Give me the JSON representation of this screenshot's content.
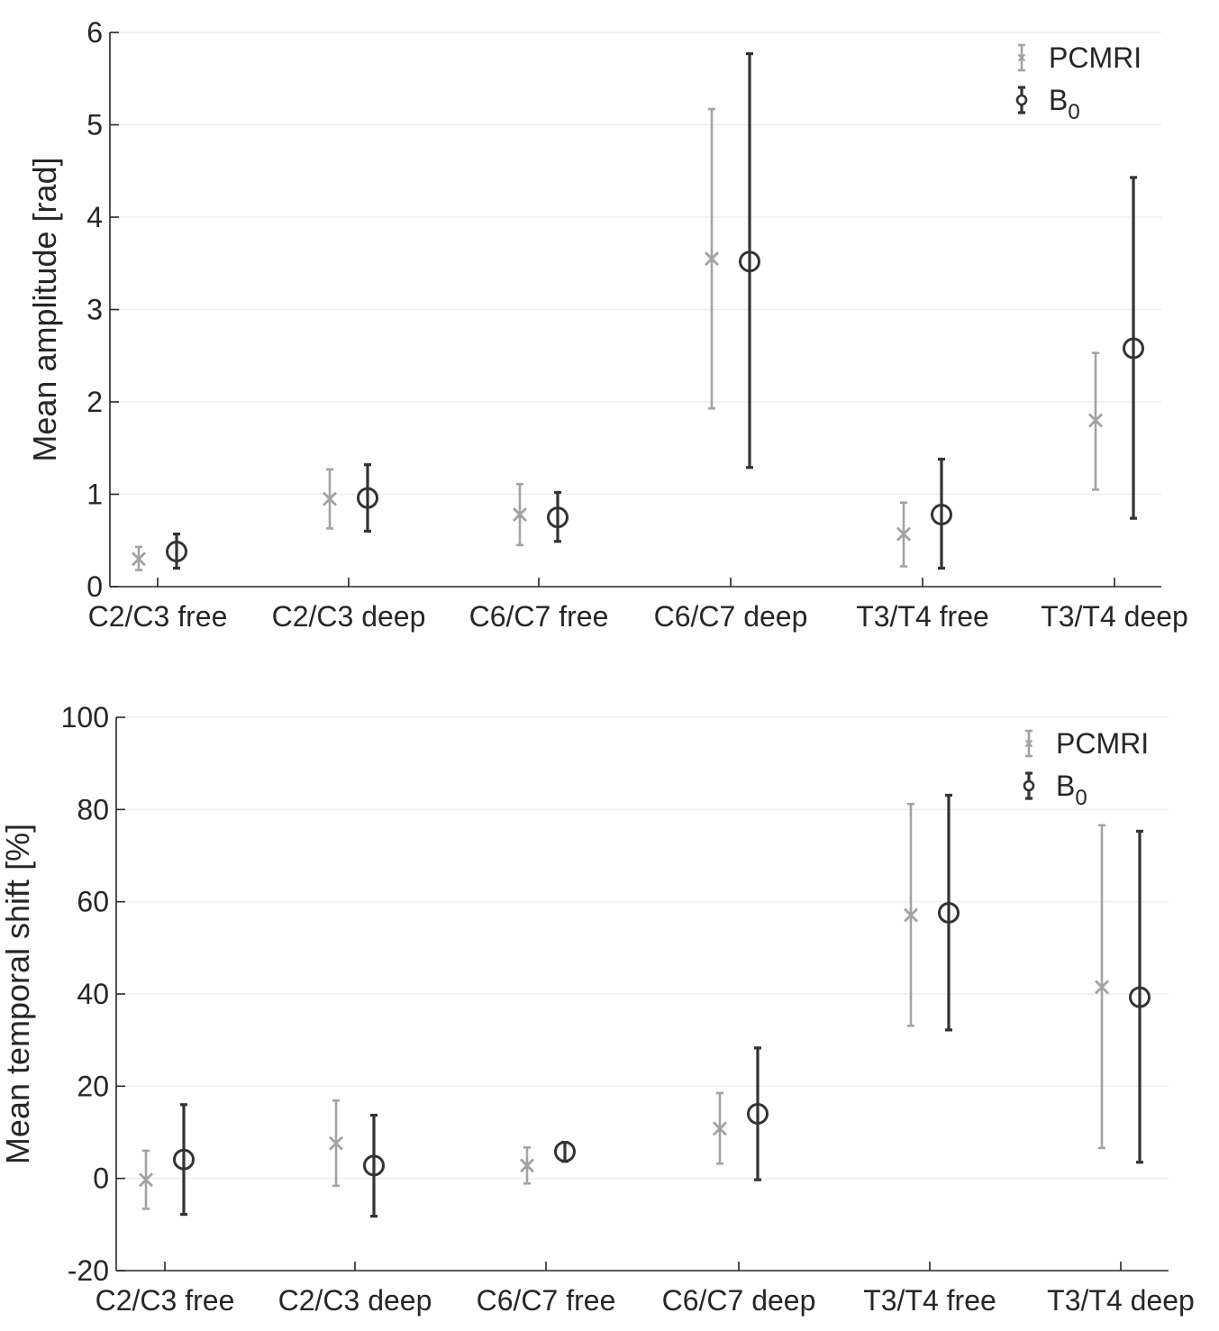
{
  "chart_data": [
    {
      "type": "errorbar",
      "title": "",
      "xlabel": "",
      "ylabel": "Mean amplitude [rad]",
      "ylim": [
        0,
        6
      ],
      "yticks": [
        0,
        1,
        2,
        3,
        4,
        5,
        6
      ],
      "categories": [
        "C2/C3 free",
        "C2/C3 deep",
        "C6/C7 free",
        "C6/C7 deep",
        "T3/T4 free",
        "T3/T4 deep"
      ],
      "legend_position": "top-right",
      "series": [
        {
          "name": "PCMRI",
          "marker": "x",
          "color": "#a3a3a3",
          "values": [
            0.3,
            0.95,
            0.78,
            3.55,
            0.57,
            1.8
          ],
          "lower": [
            0.18,
            0.63,
            0.45,
            1.93,
            0.22,
            1.05
          ],
          "upper": [
            0.43,
            1.27,
            1.11,
            5.17,
            0.91,
            2.53
          ]
        },
        {
          "name": "B",
          "name_sub": "0",
          "marker": "o",
          "color": "#333333",
          "values": [
            0.38,
            0.96,
            0.75,
            3.52,
            0.78,
            2.58
          ],
          "lower": [
            0.2,
            0.6,
            0.49,
            1.29,
            0.2,
            0.74
          ],
          "upper": [
            0.57,
            1.32,
            1.02,
            5.77,
            1.38,
            4.43
          ]
        }
      ]
    },
    {
      "type": "errorbar",
      "title": "",
      "xlabel": "",
      "ylabel": "Mean temporal shift [%]",
      "ylim": [
        -20,
        100
      ],
      "yticks": [
        -20,
        0,
        20,
        40,
        60,
        80,
        100
      ],
      "categories": [
        "C2/C3 free",
        "C2/C3 deep",
        "C6/C7 free",
        "C6/C7 deep",
        "T3/T4 free",
        "T3/T4 deep"
      ],
      "legend_position": "top-right",
      "series": [
        {
          "name": "PCMRI",
          "marker": "x",
          "color": "#a3a3a3",
          "values": [
            -0.3,
            7.6,
            2.8,
            10.8,
            57.1,
            41.5
          ],
          "lower": [
            -6.6,
            -1.6,
            -1.1,
            3.2,
            33.1,
            6.6
          ],
          "upper": [
            6.0,
            16.9,
            6.7,
            18.5,
            81.2,
            76.6
          ]
        },
        {
          "name": "B",
          "name_sub": "0",
          "marker": "o",
          "color": "#333333",
          "values": [
            4.1,
            2.8,
            5.8,
            14.0,
            57.6,
            39.3
          ],
          "lower": [
            -7.8,
            -8.2,
            3.7,
            -0.3,
            32.2,
            3.5
          ],
          "upper": [
            16.0,
            13.7,
            7.8,
            28.3,
            83.1,
            75.3
          ]
        }
      ]
    }
  ]
}
